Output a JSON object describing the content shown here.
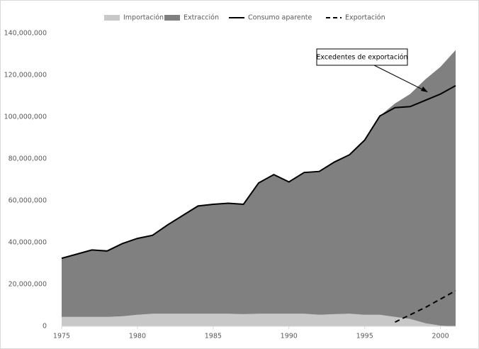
{
  "chart_data": {
    "type": "stacked-area-line",
    "annotation": "Excedentes de exportación",
    "x": [
      1975,
      1976,
      1977,
      1978,
      1979,
      1980,
      1981,
      1982,
      1983,
      1984,
      1985,
      1986,
      1987,
      1988,
      1989,
      1990,
      1991,
      1992,
      1993,
      1994,
      1995,
      1996,
      1997,
      1998,
      1999,
      2000,
      2001
    ],
    "xlim": [
      1975,
      2001
    ],
    "xticks": [
      1975,
      1980,
      1985,
      1990,
      1995,
      2000
    ],
    "ylim": [
      0,
      140000000
    ],
    "yticks": [
      0,
      {
        "value": 20000000,
        "label": "20,000,000"
      },
      {
        "value": 40000000,
        "label": "40,000,000"
      },
      {
        "value": 60000000,
        "label": "60,000,000"
      },
      {
        "value": 80000000,
        "label": "80,000,000"
      },
      {
        "value": 100000000,
        "label": "100,000,000"
      },
      {
        "value": 120000000,
        "label": "120,000,000"
      },
      {
        "value": 140000000,
        "label": "140,000,000"
      }
    ],
    "series": [
      {
        "name": "Importación",
        "kind": "area",
        "color": "#c8c8c8",
        "values": [
          4500000,
          4500000,
          4500000,
          4500000,
          4800000,
          5500000,
          6000000,
          6000000,
          6000000,
          6000000,
          6000000,
          6000000,
          5800000,
          6000000,
          6000000,
          6000000,
          6000000,
          5500000,
          5800000,
          6000000,
          5500000,
          5500000,
          4500000,
          3500000,
          1500000,
          300000,
          0
        ]
      },
      {
        "name": "Extracción",
        "kind": "area",
        "color": "#808080",
        "values": [
          28000000,
          30000000,
          32000000,
          31500000,
          34700000,
          36500000,
          37500000,
          42500000,
          47000000,
          51500000,
          52300000,
          52800000,
          52500000,
          62500000,
          66500000,
          63000000,
          67500000,
          68500000,
          72700000,
          76000000,
          83500000,
          95000000,
          102000000,
          107500000,
          116500000,
          123700000,
          132000000
        ]
      },
      {
        "name": "Consumo aparente",
        "kind": "line",
        "color": "#000000",
        "values": [
          32500000,
          34500000,
          36500000,
          36000000,
          39500000,
          42000000,
          43500000,
          48500000,
          53000000,
          57500000,
          58300000,
          58800000,
          58300000,
          68500000,
          72500000,
          69000000,
          73500000,
          74000000,
          78500000,
          82000000,
          89000000,
          100500000,
          104500000,
          105000000,
          108000000,
          111000000,
          115000000
        ]
      },
      {
        "name": "Exportación",
        "kind": "dashed",
        "color": "#000000",
        "values": [
          null,
          null,
          null,
          null,
          null,
          null,
          null,
          null,
          null,
          null,
          null,
          null,
          null,
          null,
          null,
          null,
          null,
          null,
          null,
          null,
          null,
          null,
          2000000,
          5500000,
          9000000,
          13000000,
          17000000
        ]
      }
    ]
  }
}
